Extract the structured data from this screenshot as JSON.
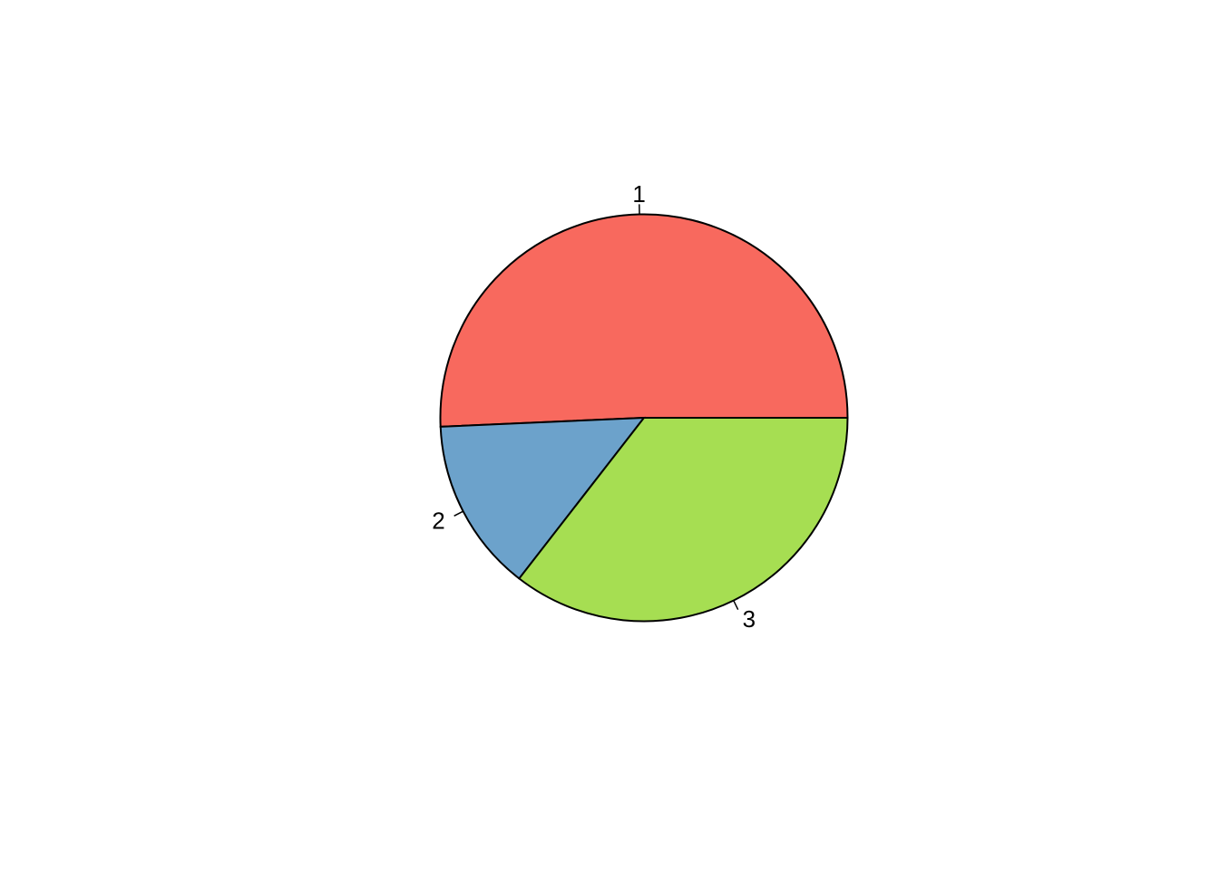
{
  "chart_data": {
    "type": "pie",
    "title": "",
    "categories": [
      "1",
      "2",
      "3"
    ],
    "values": [
      0.507,
      0.138,
      0.355
    ],
    "colors": [
      "#F8695E",
      "#6CA2CB",
      "#A6DE52"
    ],
    "start_angle_deg": 0,
    "direction": "counterclockwise",
    "border_color": "#000000"
  }
}
